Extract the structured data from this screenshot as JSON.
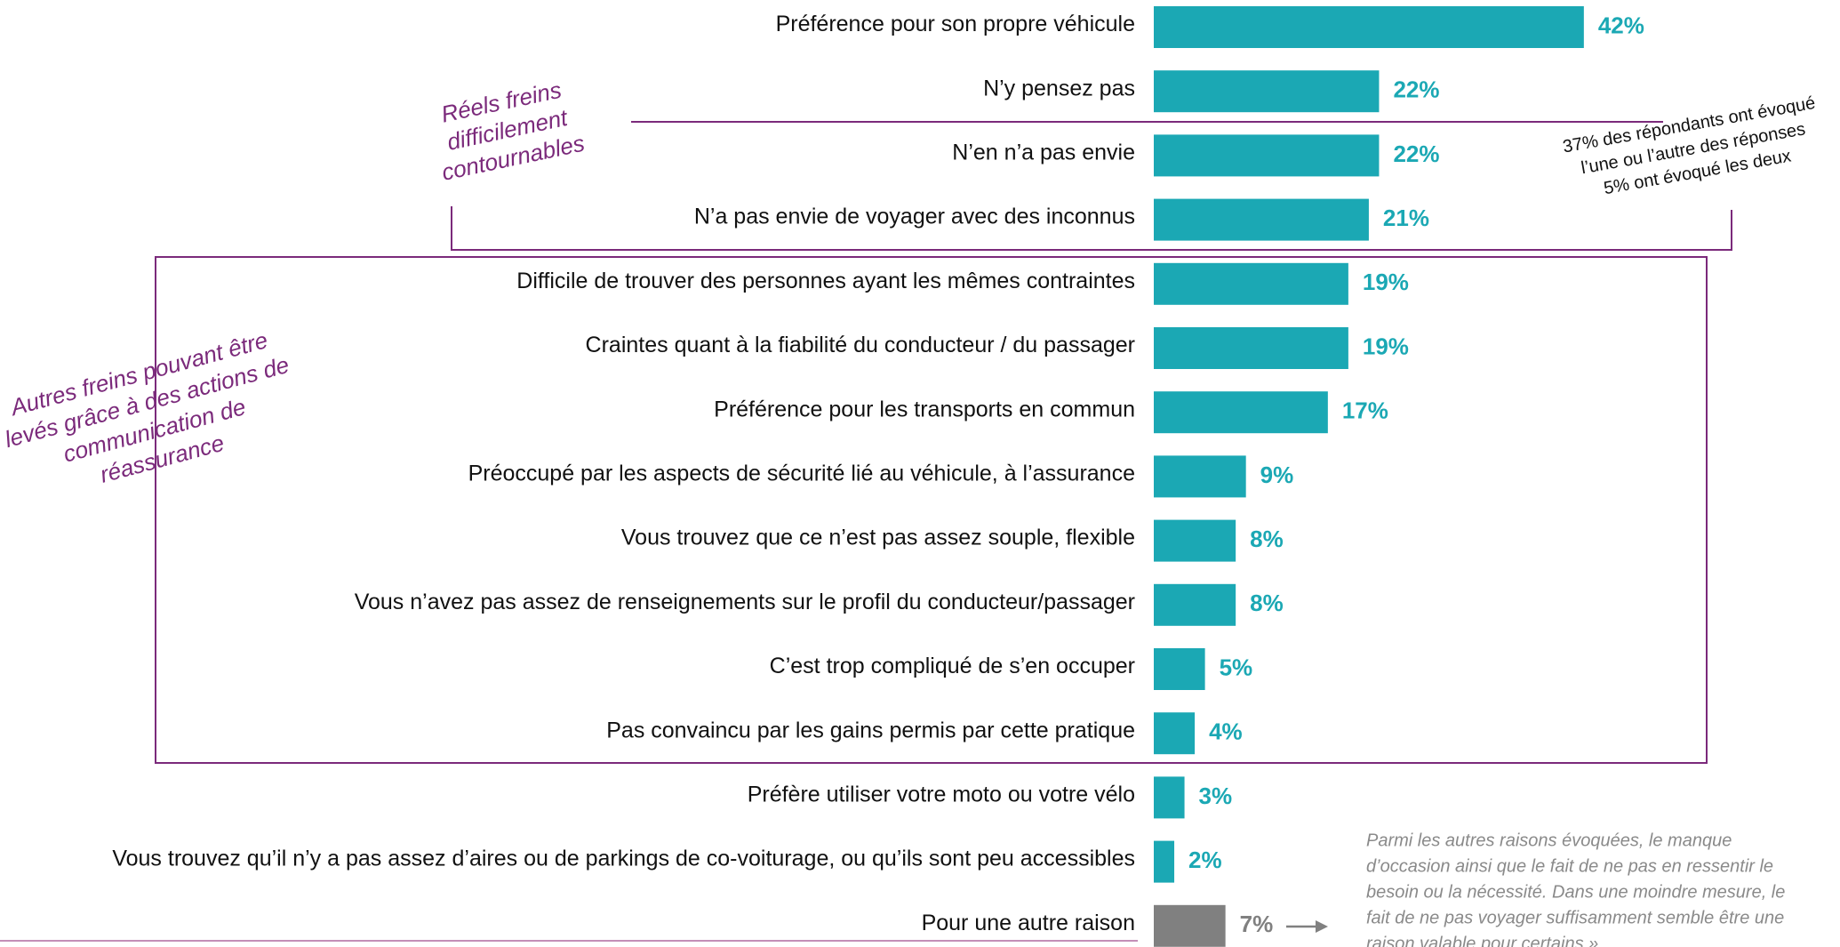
{
  "chart_data": {
    "type": "bar",
    "orientation": "horizontal",
    "categories": [
      "Préférence pour son propre véhicule",
      "N’y pensez pas",
      "N’en n’a pas envie",
      "N’a pas envie de voyager avec des inconnus",
      "Difficile de trouver des personnes ayant les mêmes contraintes",
      "Craintes quant à la fiabilité du conducteur / du passager",
      "Préférence pour les transports en commun",
      "Préoccupé par les aspects de sécurité lié au véhicule, à l’assurance",
      "Vous trouvez que ce n’est pas assez souple, flexible",
      "Vous n’avez pas assez de renseignements sur le profil du conducteur/passager",
      "C’est trop compliqué de s’en occuper",
      "Pas convaincu par les gains permis par cette pratique",
      "Préfère utiliser votre moto ou votre vélo",
      "Vous trouvez qu’il n’y a pas assez d’aires ou de parkings de co-voiturage, ou qu’ils sont peu accessibles",
      "Pour une autre raison"
    ],
    "values": [
      42,
      22,
      22,
      21,
      19,
      19,
      17,
      9,
      8,
      8,
      5,
      4,
      3,
      2,
      7
    ],
    "value_labels": [
      "42%",
      "22%",
      "22%",
      "21%",
      "19%",
      "19%",
      "17%",
      "9%",
      "8%",
      "8%",
      "5%",
      "4%",
      "3%",
      "2%",
      "7%"
    ],
    "colors": [
      "#1ba8b4",
      "#1ba8b4",
      "#1ba8b4",
      "#1ba8b4",
      "#1ba8b4",
      "#1ba8b4",
      "#1ba8b4",
      "#1ba8b4",
      "#1ba8b4",
      "#1ba8b4",
      "#1ba8b4",
      "#1ba8b4",
      "#1ba8b4",
      "#1ba8b4",
      "#808080"
    ],
    "xlim": [
      0,
      50
    ],
    "annotations": {
      "group1": [
        "Réels freins",
        "difficilement",
        "contournables"
      ],
      "group2": [
        "Autres freins pouvant être",
        "levés grâce à des actions de",
        "communication de",
        "réassurance"
      ],
      "side_note": [
        "37% des répondants ont évoqué",
        "l’une ou l’autre des réponses",
        "5% ont évoqué les deux"
      ],
      "other_note": [
        "Parmi les autres raisons évoquées, le manque",
        "d’occasion ainsi que le fait de ne pas en ressentir le",
        "besoin ou la nécessité. Dans une moindre mesure, le",
        "fait de ne pas voyager suffisamment semble être une",
        "raison valable pour certains »"
      ]
    }
  }
}
